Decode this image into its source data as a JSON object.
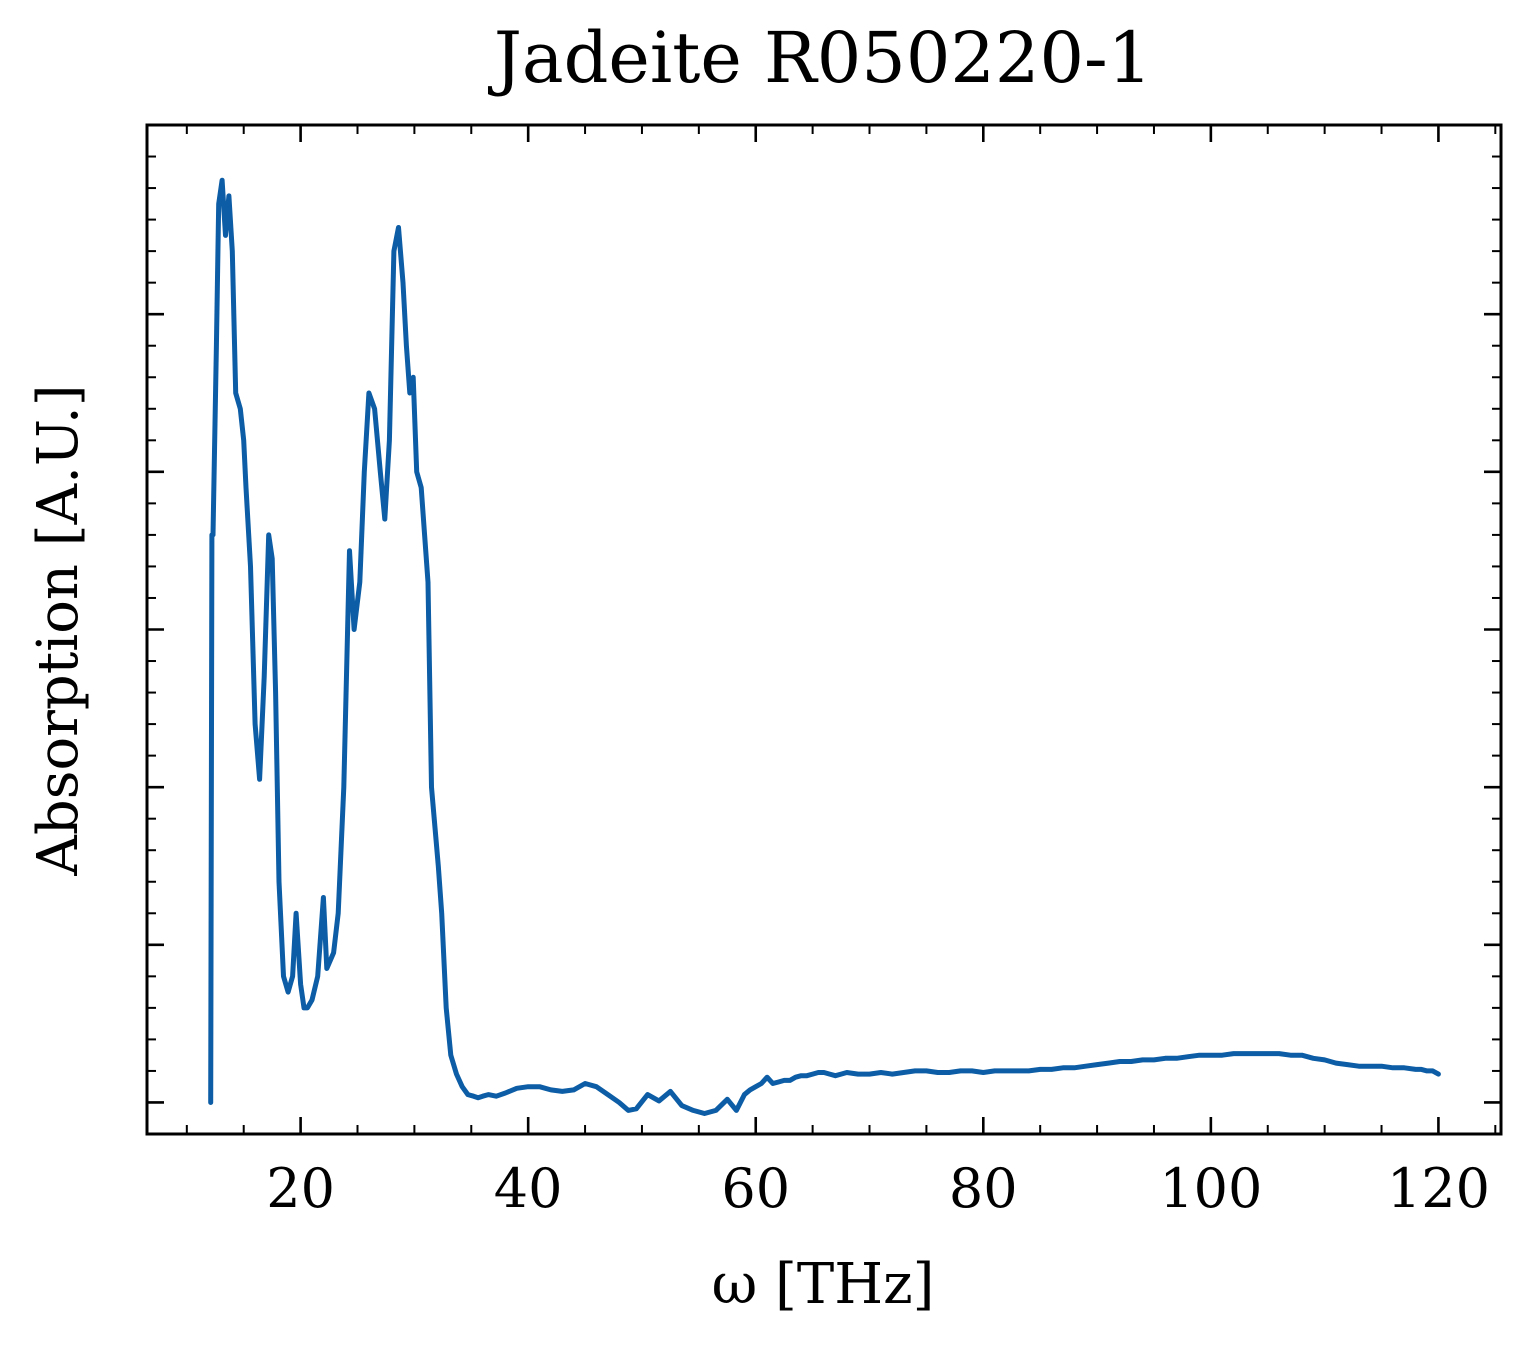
{
  "chart_data": {
    "type": "line",
    "title": "Jadeite R050220-1",
    "xlabel": "ω [THz]",
    "ylabel": "Absorption [A.U.]",
    "xlim": [
      6.5,
      125.5
    ],
    "ylim": [
      -0.2,
      6.2
    ],
    "x_ticks": [
      20,
      40,
      60,
      80,
      100,
      120
    ],
    "x_minor_step": 5,
    "y_major_ticks": [
      0,
      1,
      2,
      3,
      4,
      5
    ],
    "y_minor_step": 0.2,
    "y_tick_labels_shown": false,
    "grid": false,
    "legend": "none",
    "line_color": "#0c5da5",
    "series": [
      {
        "x": [
          12.1,
          12.2,
          12.3,
          12.6,
          12.8,
          13.1,
          13.4,
          13.7,
          14.0,
          14.3,
          14.7,
          15.0,
          15.2,
          15.6,
          16.0,
          16.4,
          16.8,
          17.2,
          17.5,
          17.8,
          18.1,
          18.5,
          18.9,
          19.3,
          19.6,
          20.0,
          20.3,
          20.6,
          21.0,
          21.5,
          22.0,
          22.3,
          22.6,
          22.9,
          23.3,
          23.8,
          24.3,
          24.7,
          25.2,
          25.6,
          26.0,
          26.5,
          27.0,
          27.4,
          27.8,
          28.2,
          28.6,
          29.0,
          29.3,
          29.6,
          29.9,
          30.2,
          30.6,
          30.9,
          31.2,
          31.5,
          31.8,
          32.1,
          32.4,
          32.8,
          33.2,
          33.7,
          34.2,
          34.7,
          35.2,
          35.6,
          36.0,
          36.5,
          37.2,
          38.0,
          39.0,
          40.0,
          41.0,
          42.0,
          43.0,
          44.0,
          45.0,
          46.0,
          47.0,
          48.0,
          48.8,
          49.5,
          50.5,
          51.5,
          52.5,
          53.5,
          54.5,
          55.5,
          56.5,
          57.5,
          58.3,
          59.0,
          59.5,
          60.0,
          60.5,
          61.0,
          61.5,
          62.0,
          62.5,
          63.0,
          63.5,
          64.0,
          64.5,
          65.0,
          65.5,
          66.0,
          66.5,
          67.0,
          67.5,
          68.0,
          69.0,
          70.0,
          71.0,
          72.0,
          73.0,
          74.0,
          75.0,
          76.0,
          77.0,
          78.0,
          79.0,
          80.0,
          81.0,
          82.0,
          83.0,
          84.0,
          85.0,
          86.0,
          87.0,
          88.0,
          89.0,
          90.0,
          91.0,
          92.0,
          93.0,
          94.0,
          95.0,
          96.0,
          97.0,
          98.0,
          99.0,
          100.0,
          101.0,
          102.0,
          103.0,
          104.0,
          105.0,
          106.0,
          107.0,
          108.0,
          109.0,
          110.0,
          111.0,
          112.0,
          113.0,
          114.0,
          115.0,
          116.0,
          117.0,
          118.0,
          118.5,
          119.0,
          119.5,
          120.0
        ],
        "y": [
          0.0,
          3.6,
          3.6,
          4.8,
          5.7,
          5.85,
          5.5,
          5.75,
          5.4,
          4.5,
          4.4,
          4.2,
          3.9,
          3.4,
          2.4,
          2.05,
          2.7,
          3.6,
          3.45,
          2.6,
          1.4,
          0.8,
          0.7,
          0.8,
          1.2,
          0.75,
          0.6,
          0.6,
          0.65,
          0.8,
          1.3,
          0.85,
          0.9,
          0.95,
          1.2,
          2.0,
          3.5,
          3.0,
          3.3,
          4.0,
          4.5,
          4.4,
          4.0,
          3.7,
          4.2,
          5.4,
          5.55,
          5.2,
          4.8,
          4.5,
          4.6,
          4.0,
          3.9,
          3.6,
          3.3,
          2.0,
          1.75,
          1.5,
          1.2,
          0.6,
          0.3,
          0.18,
          0.1,
          0.05,
          0.04,
          0.03,
          0.04,
          0.05,
          0.04,
          0.06,
          0.09,
          0.1,
          0.1,
          0.08,
          0.07,
          0.08,
          0.12,
          0.1,
          0.05,
          0.0,
          -0.05,
          -0.04,
          0.05,
          0.01,
          0.07,
          -0.02,
          -0.05,
          -0.07,
          -0.05,
          0.02,
          -0.05,
          0.05,
          0.08,
          0.1,
          0.12,
          0.16,
          0.12,
          0.13,
          0.14,
          0.14,
          0.16,
          0.17,
          0.17,
          0.18,
          0.19,
          0.19,
          0.18,
          0.17,
          0.18,
          0.19,
          0.18,
          0.18,
          0.19,
          0.18,
          0.19,
          0.2,
          0.2,
          0.19,
          0.19,
          0.2,
          0.2,
          0.19,
          0.2,
          0.2,
          0.2,
          0.2,
          0.21,
          0.21,
          0.22,
          0.22,
          0.23,
          0.24,
          0.25,
          0.26,
          0.26,
          0.27,
          0.27,
          0.28,
          0.28,
          0.29,
          0.3,
          0.3,
          0.3,
          0.31,
          0.31,
          0.31,
          0.31,
          0.31,
          0.3,
          0.3,
          0.28,
          0.27,
          0.25,
          0.24,
          0.23,
          0.23,
          0.23,
          0.22,
          0.22,
          0.21,
          0.21,
          0.2,
          0.2,
          0.18
        ]
      }
    ]
  }
}
